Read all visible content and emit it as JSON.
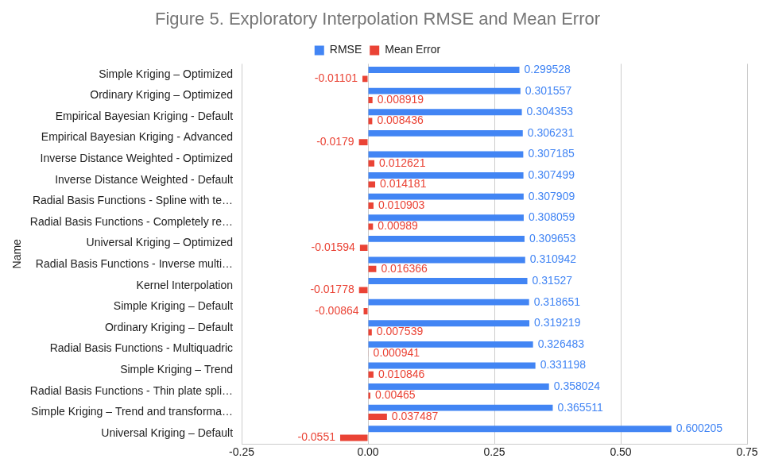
{
  "chart_data": {
    "type": "bar",
    "orientation": "horizontal",
    "title": "Figure 5. Exploratory Interpolation RMSE and Mean Error",
    "ylabel": "Name",
    "categories": [
      "Simple Kriging – Optimized",
      "Ordinary Kriging – Optimized",
      "Empirical Bayesian Kriging - Default",
      "Empirical Bayesian Kriging - Advanced",
      "Inverse Distance Weighted - Optimized",
      "Inverse Distance Weighted - Default",
      "Radial Basis Functions - Spline with te…",
      "Radial Basis Functions - Completely re…",
      "Universal Kriging – Optimized",
      "Radial Basis Functions - Inverse multi…",
      "Kernel Interpolation",
      "Simple Kriging – Default",
      "Ordinary Kriging – Default",
      "Radial Basis Functions - Multiquadric",
      "Simple Kriging – Trend",
      "Radial Basis Functions - Thin plate spli…",
      "Simple Kriging – Trend and transforma…",
      "Universal Kriging – Default"
    ],
    "series": [
      {
        "name": "RMSE",
        "color": "#4285f4",
        "values": [
          0.299528,
          0.301557,
          0.304353,
          0.306231,
          0.307185,
          0.307499,
          0.307909,
          0.308059,
          0.309653,
          0.310942,
          0.31527,
          0.318651,
          0.319219,
          0.326483,
          0.331198,
          0.358024,
          0.365511,
          0.600205
        ]
      },
      {
        "name": "Mean Error",
        "color": "#ea4335",
        "values": [
          -0.01101,
          0.008919,
          0.008436,
          -0.0179,
          0.012621,
          0.014181,
          0.010903,
          0.00989,
          -0.01594,
          0.016366,
          -0.01778,
          -0.00864,
          0.007539,
          0.000941,
          0.010846,
          0.00465,
          0.037487,
          -0.0551
        ]
      }
    ],
    "xlim": [
      -0.25,
      0.75
    ],
    "xticks": [
      -0.25,
      {
        "value": 0,
        "label": "0.00"
      },
      0.25,
      {
        "value": 0.5,
        "label": "0.50"
      },
      0.75
    ],
    "grid": true,
    "legend": "top",
    "data_labels": true
  }
}
